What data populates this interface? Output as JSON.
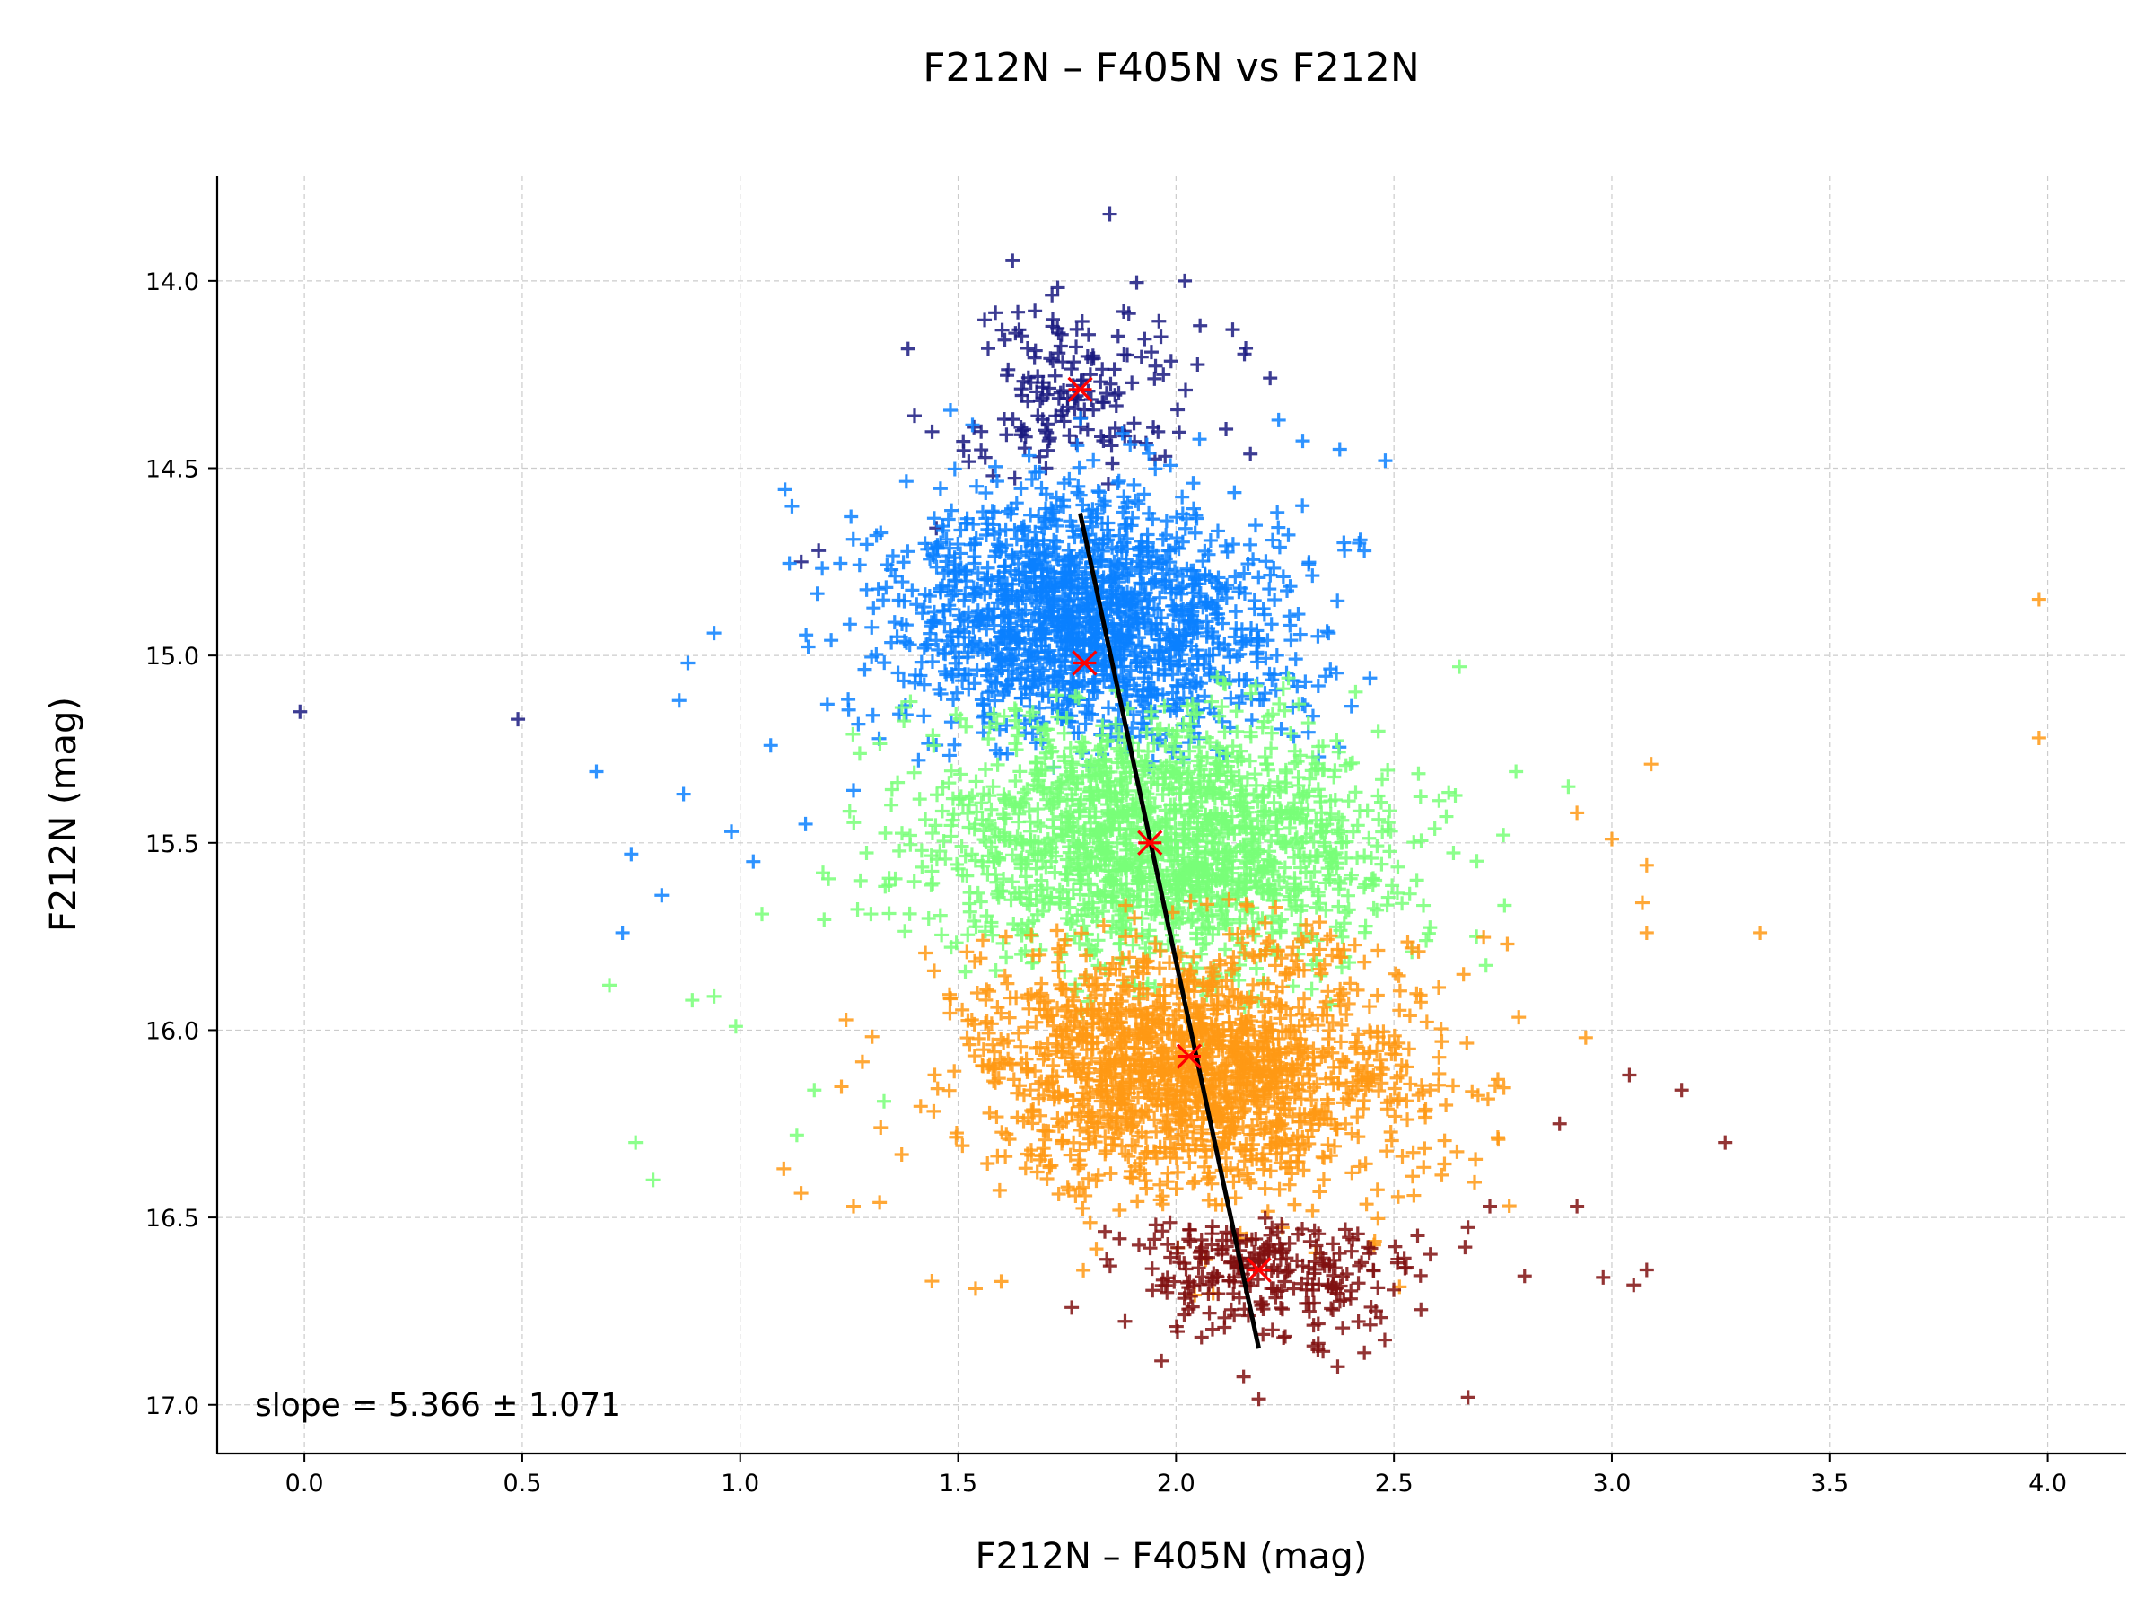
{
  "chart_data": {
    "type": "scatter",
    "title": "F212N – F405N vs F212N",
    "xlabel": "F212N – F405N (mag)",
    "ylabel": "F212N (mag)",
    "xlim": [
      -0.2,
      4.18
    ],
    "ylim": [
      17.13,
      13.72
    ],
    "y_inverted": true,
    "grid": true,
    "x_ticks": [
      "0.0",
      "0.5",
      "1.0",
      "1.5",
      "2.0",
      "2.5",
      "3.0",
      "3.5",
      "4.0"
    ],
    "y_ticks": [
      "14.0",
      "14.5",
      "15.0",
      "15.5",
      "16.0",
      "16.5",
      "17.0"
    ],
    "marker": "plus",
    "annotation": "slope = 5.366 ± 1.071",
    "colors": {
      "navy": "#1a1a80",
      "blue": "#0a80ff",
      "green": "#78ff78",
      "orange": "#ff9914",
      "darkred": "#801010",
      "fit_line": "#000000",
      "bin_marker": "#ff0000",
      "grid": "#cccccc"
    },
    "series": [
      {
        "color_key": "navy",
        "bin_range": [
          13.8,
          14.55
        ],
        "center": [
          1.78,
          14.29
        ],
        "spread": [
          0.14,
          0.17
        ],
        "count": 160,
        "outliers": [
          [
            -0.01,
            15.15
          ],
          [
            0.49,
            15.17
          ],
          [
            1.14,
            14.75
          ],
          [
            1.18,
            14.72
          ],
          [
            1.45,
            14.66
          ],
          [
            1.4,
            14.36
          ],
          [
            2.02,
            14.0
          ],
          [
            2.13,
            14.13
          ],
          [
            2.16,
            14.18
          ],
          [
            1.58,
            14.52
          ]
        ]
      },
      {
        "color_key": "blue",
        "bin_range": [
          14.3,
          15.3
        ],
        "center": [
          1.8,
          14.9
        ],
        "spread": [
          0.22,
          0.22
        ],
        "count": 1500,
        "outliers": [
          [
            0.67,
            15.31
          ],
          [
            0.75,
            15.53
          ],
          [
            0.73,
            15.74
          ],
          [
            0.82,
            15.64
          ],
          [
            0.87,
            15.37
          ],
          [
            0.86,
            15.12
          ],
          [
            0.88,
            15.02
          ],
          [
            0.94,
            14.94
          ],
          [
            0.98,
            15.47
          ],
          [
            1.03,
            15.55
          ],
          [
            1.07,
            15.24
          ],
          [
            1.15,
            15.45
          ],
          [
            1.2,
            15.13
          ],
          [
            1.26,
            15.36
          ],
          [
            1.36,
            14.95
          ],
          [
            1.43,
            14.97
          ],
          [
            2.48,
            14.48
          ],
          [
            2.35,
            14.94
          ],
          [
            2.42,
            14.7
          ],
          [
            2.29,
            14.6
          ]
        ]
      },
      {
        "color_key": "green",
        "bin_range": [
          15.05,
          16.1
        ],
        "center": [
          1.95,
          15.5
        ],
        "spread": [
          0.26,
          0.22
        ],
        "count": 1600,
        "outliers": [
          [
            0.7,
            15.88
          ],
          [
            0.76,
            16.3
          ],
          [
            0.8,
            16.4
          ],
          [
            0.89,
            15.92
          ],
          [
            0.94,
            15.91
          ],
          [
            0.99,
            15.99
          ],
          [
            1.05,
            15.69
          ],
          [
            1.17,
            16.16
          ],
          [
            1.13,
            16.28
          ],
          [
            1.19,
            15.58
          ],
          [
            1.3,
            15.69
          ],
          [
            1.33,
            16.19
          ],
          [
            2.78,
            15.31
          ],
          [
            2.9,
            15.35
          ],
          [
            2.62,
            15.43
          ],
          [
            2.65,
            15.03
          ]
        ]
      },
      {
        "color_key": "orange",
        "bin_range": [
          15.65,
          16.72
        ],
        "center": [
          2.03,
          16.1
        ],
        "spread": [
          0.26,
          0.22
        ],
        "count": 1600,
        "outliers": [
          [
            1.1,
            16.37
          ],
          [
            1.26,
            16.47
          ],
          [
            1.32,
            16.46
          ],
          [
            1.44,
            16.67
          ],
          [
            1.54,
            16.69
          ],
          [
            2.92,
            15.42
          ],
          [
            3.0,
            15.49
          ],
          [
            3.08,
            15.56
          ],
          [
            3.07,
            15.66
          ],
          [
            3.08,
            15.74
          ],
          [
            3.34,
            15.74
          ],
          [
            3.09,
            15.29
          ],
          [
            3.98,
            14.85
          ],
          [
            3.98,
            15.22
          ],
          [
            2.94,
            16.02
          ],
          [
            2.76,
            15.77
          ]
        ]
      },
      {
        "color_key": "darkred",
        "bin_range": [
          16.5,
          17.0
        ],
        "center": [
          2.2,
          16.64
        ],
        "spread": [
          0.17,
          0.11
        ],
        "count": 260,
        "outliers": [
          [
            2.92,
            16.47
          ],
          [
            3.04,
            16.12
          ],
          [
            3.16,
            16.16
          ],
          [
            3.26,
            16.3
          ],
          [
            2.98,
            16.66
          ],
          [
            3.05,
            16.68
          ],
          [
            3.08,
            16.64
          ],
          [
            2.88,
            16.25
          ],
          [
            2.72,
            16.47
          ],
          [
            2.67,
            16.98
          ]
        ]
      }
    ],
    "bin_medians": [
      {
        "x": 1.78,
        "y": 14.29
      },
      {
        "x": 1.79,
        "y": 15.02
      },
      {
        "x": 1.94,
        "y": 15.5
      },
      {
        "x": 2.03,
        "y": 16.07
      },
      {
        "x": 2.19,
        "y": 16.64
      }
    ],
    "fit_line": {
      "x": [
        1.78,
        2.19
      ],
      "y": [
        14.62,
        16.85
      ]
    }
  }
}
